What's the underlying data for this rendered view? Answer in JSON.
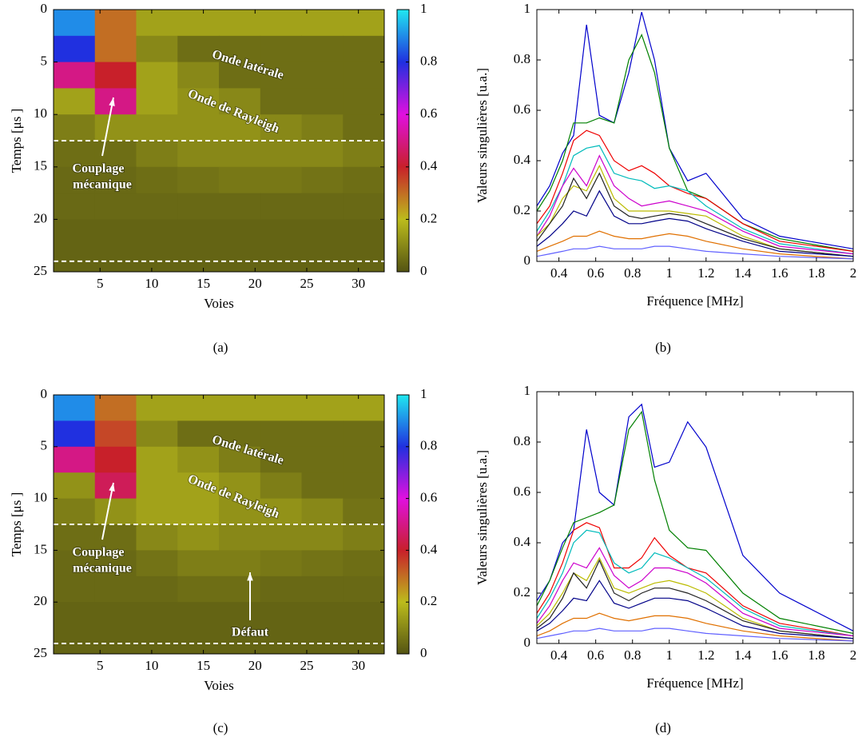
{
  "chart_data": [
    {
      "type": "heatmap",
      "xlabel": "Voies",
      "ylabel": "Temps [μs ]",
      "caption": "(a)",
      "xlim": [
        0.5,
        32.5
      ],
      "xticks": [
        5,
        10,
        15,
        20,
        25,
        30
      ],
      "ylim": [
        25,
        0
      ],
      "yticks": [
        0,
        5,
        10,
        15,
        20,
        25
      ],
      "xbins": [
        0.5,
        4.5,
        8.5,
        12.5,
        16.5,
        20.5,
        24.5,
        28.5,
        32.5
      ],
      "ybins": [
        0,
        2.5,
        5,
        7.5,
        10,
        12.5,
        15,
        17.5,
        20,
        22.5,
        25
      ],
      "z": [
        [
          0.9,
          0.3,
          0.15,
          0.15,
          0.15,
          0.15,
          0.15,
          0.15
        ],
        [
          0.8,
          0.3,
          0.1,
          0.05,
          0.05,
          0.05,
          0.05,
          0.05
        ],
        [
          0.5,
          0.4,
          0.15,
          0.1,
          0.05,
          0.05,
          0.05,
          0.05
        ],
        [
          0.15,
          0.5,
          0.15,
          0.12,
          0.1,
          0.05,
          0.05,
          0.05
        ],
        [
          0.08,
          0.12,
          0.12,
          0.12,
          0.12,
          0.1,
          0.08,
          0.05
        ],
        [
          0.05,
          0.05,
          0.08,
          0.1,
          0.1,
          0.1,
          0.1,
          0.08
        ],
        [
          0.04,
          0.04,
          0.05,
          0.06,
          0.07,
          0.07,
          0.06,
          0.05
        ],
        [
          0.04,
          0.04,
          0.04,
          0.04,
          0.04,
          0.04,
          0.04,
          0.04
        ],
        [
          0.03,
          0.03,
          0.03,
          0.03,
          0.03,
          0.03,
          0.03,
          0.03
        ],
        [
          0.03,
          0.03,
          0.03,
          0.03,
          0.03,
          0.03,
          0.03,
          0.03
        ]
      ],
      "clim": [
        0,
        1
      ],
      "cticks": [
        0,
        0.2,
        0.4,
        0.6,
        0.8,
        1
      ],
      "colormap": [
        "#545413",
        "#bcbc1c",
        "#c8202a",
        "#e010e0",
        "#2030e0",
        "#20e8f0"
      ],
      "hlines": [
        12.5,
        24
      ],
      "annotations": [
        "Onde latérale",
        "Onde de Rayleigh",
        "Couplage",
        "mécanique"
      ]
    },
    {
      "type": "line",
      "xlabel": "Fréquence [MHz]",
      "ylabel": "Valeurs singulières [u.a.]",
      "caption": "(b)",
      "xlim": [
        0.28,
        2
      ],
      "xticks": [
        0.4,
        0.6,
        0.8,
        1,
        1.2,
        1.4,
        1.6,
        1.8,
        2
      ],
      "ylim": [
        0,
        1
      ],
      "yticks": [
        0,
        0.2,
        0.4,
        0.6,
        0.8,
        1
      ],
      "x": [
        0.28,
        0.35,
        0.42,
        0.48,
        0.55,
        0.62,
        0.7,
        0.78,
        0.85,
        0.92,
        1.0,
        1.1,
        1.2,
        1.4,
        1.6,
        2.0
      ],
      "series": [
        {
          "color": "#0000cc",
          "values": [
            0.22,
            0.3,
            0.43,
            0.5,
            0.94,
            0.58,
            0.55,
            0.75,
            0.99,
            0.8,
            0.45,
            0.32,
            0.35,
            0.17,
            0.1,
            0.05
          ]
        },
        {
          "color": "#008000",
          "values": [
            0.2,
            0.28,
            0.4,
            0.55,
            0.55,
            0.57,
            0.55,
            0.8,
            0.9,
            0.75,
            0.45,
            0.28,
            0.25,
            0.15,
            0.09,
            0.04
          ]
        },
        {
          "color": "#ee0000",
          "values": [
            0.15,
            0.22,
            0.35,
            0.48,
            0.52,
            0.5,
            0.4,
            0.36,
            0.38,
            0.35,
            0.3,
            0.27,
            0.25,
            0.15,
            0.08,
            0.04
          ]
        },
        {
          "color": "#00bbbb",
          "values": [
            0.12,
            0.2,
            0.3,
            0.42,
            0.45,
            0.46,
            0.35,
            0.33,
            0.32,
            0.29,
            0.3,
            0.28,
            0.22,
            0.13,
            0.07,
            0.03
          ]
        },
        {
          "color": "#cc00cc",
          "values": [
            0.1,
            0.18,
            0.3,
            0.37,
            0.3,
            0.42,
            0.3,
            0.25,
            0.22,
            0.23,
            0.24,
            0.22,
            0.2,
            0.12,
            0.06,
            0.03
          ]
        },
        {
          "color": "#bbbb00",
          "values": [
            0.1,
            0.15,
            0.25,
            0.3,
            0.28,
            0.38,
            0.25,
            0.2,
            0.2,
            0.2,
            0.2,
            0.19,
            0.18,
            0.1,
            0.05,
            0.02
          ]
        },
        {
          "color": "#222222",
          "values": [
            0.08,
            0.15,
            0.22,
            0.33,
            0.25,
            0.35,
            0.22,
            0.18,
            0.17,
            0.18,
            0.19,
            0.18,
            0.15,
            0.09,
            0.05,
            0.02
          ]
        },
        {
          "color": "#000088",
          "values": [
            0.06,
            0.1,
            0.15,
            0.2,
            0.18,
            0.28,
            0.18,
            0.15,
            0.15,
            0.16,
            0.17,
            0.16,
            0.13,
            0.08,
            0.04,
            0.02
          ]
        },
        {
          "color": "#e07000",
          "values": [
            0.04,
            0.06,
            0.08,
            0.1,
            0.1,
            0.12,
            0.1,
            0.09,
            0.09,
            0.1,
            0.11,
            0.1,
            0.08,
            0.05,
            0.03,
            0.01
          ]
        },
        {
          "color": "#6060ff",
          "values": [
            0.02,
            0.03,
            0.04,
            0.05,
            0.05,
            0.06,
            0.05,
            0.05,
            0.05,
            0.06,
            0.06,
            0.05,
            0.04,
            0.03,
            0.02,
            0.01
          ]
        }
      ]
    },
    {
      "type": "heatmap",
      "xlabel": "Voies",
      "ylabel": "Temps [μs ]",
      "caption": "(c)",
      "xlim": [
        0.5,
        32.5
      ],
      "xticks": [
        5,
        10,
        15,
        20,
        25,
        30
      ],
      "ylim": [
        25,
        0
      ],
      "yticks": [
        0,
        5,
        10,
        15,
        20,
        25
      ],
      "xbins": [
        0.5,
        4.5,
        8.5,
        12.5,
        16.5,
        20.5,
        24.5,
        28.5,
        32.5
      ],
      "ybins": [
        0,
        2.5,
        5,
        7.5,
        10,
        12.5,
        15,
        17.5,
        20,
        22.5,
        25
      ],
      "z": [
        [
          0.9,
          0.3,
          0.15,
          0.15,
          0.15,
          0.15,
          0.15,
          0.15
        ],
        [
          0.8,
          0.35,
          0.1,
          0.05,
          0.05,
          0.05,
          0.05,
          0.05
        ],
        [
          0.5,
          0.4,
          0.15,
          0.12,
          0.08,
          0.05,
          0.05,
          0.05
        ],
        [
          0.12,
          0.45,
          0.15,
          0.15,
          0.12,
          0.08,
          0.05,
          0.05
        ],
        [
          0.08,
          0.12,
          0.15,
          0.15,
          0.12,
          0.12,
          0.1,
          0.06
        ],
        [
          0.05,
          0.05,
          0.1,
          0.12,
          0.1,
          0.1,
          0.1,
          0.08
        ],
        [
          0.04,
          0.04,
          0.06,
          0.08,
          0.08,
          0.07,
          0.06,
          0.05
        ],
        [
          0.04,
          0.04,
          0.04,
          0.05,
          0.05,
          0.04,
          0.04,
          0.04
        ],
        [
          0.03,
          0.03,
          0.03,
          0.03,
          0.03,
          0.03,
          0.03,
          0.03
        ],
        [
          0.03,
          0.03,
          0.03,
          0.03,
          0.03,
          0.03,
          0.03,
          0.03
        ]
      ],
      "clim": [
        0,
        1
      ],
      "cticks": [
        0,
        0.2,
        0.4,
        0.6,
        0.8,
        1
      ],
      "colormap": [
        "#545413",
        "#bcbc1c",
        "#c8202a",
        "#e010e0",
        "#2030e0",
        "#20e8f0"
      ],
      "hlines": [
        12.5,
        24
      ],
      "annotations": [
        "Onde latérale",
        "Onde de Rayleigh",
        "Couplage",
        "mécanique",
        "Défaut"
      ]
    },
    {
      "type": "line",
      "xlabel": "Fréquence [MHz]",
      "ylabel": "Valeurs singulières [u.a.]",
      "caption": "(d)",
      "xlim": [
        0.28,
        2
      ],
      "xticks": [
        0.4,
        0.6,
        0.8,
        1,
        1.2,
        1.4,
        1.6,
        1.8,
        2
      ],
      "ylim": [
        0,
        1
      ],
      "yticks": [
        0,
        0.2,
        0.4,
        0.6,
        0.8,
        1
      ],
      "x": [
        0.28,
        0.35,
        0.42,
        0.48,
        0.55,
        0.62,
        0.7,
        0.78,
        0.85,
        0.92,
        1.0,
        1.1,
        1.2,
        1.4,
        1.6,
        2.0
      ],
      "series": [
        {
          "color": "#0000cc",
          "values": [
            0.17,
            0.25,
            0.4,
            0.45,
            0.85,
            0.6,
            0.55,
            0.9,
            0.95,
            0.7,
            0.72,
            0.88,
            0.78,
            0.35,
            0.2,
            0.05
          ]
        },
        {
          "color": "#008000",
          "values": [
            0.15,
            0.25,
            0.38,
            0.48,
            0.5,
            0.52,
            0.55,
            0.85,
            0.92,
            0.65,
            0.45,
            0.38,
            0.37,
            0.2,
            0.1,
            0.04
          ]
        },
        {
          "color": "#ee0000",
          "values": [
            0.12,
            0.2,
            0.32,
            0.45,
            0.48,
            0.46,
            0.3,
            0.3,
            0.34,
            0.42,
            0.35,
            0.3,
            0.28,
            0.15,
            0.08,
            0.03
          ]
        },
        {
          "color": "#00bbbb",
          "values": [
            0.1,
            0.18,
            0.28,
            0.4,
            0.45,
            0.44,
            0.32,
            0.28,
            0.3,
            0.36,
            0.34,
            0.3,
            0.26,
            0.14,
            0.07,
            0.03
          ]
        },
        {
          "color": "#cc00cc",
          "values": [
            0.08,
            0.15,
            0.25,
            0.32,
            0.3,
            0.38,
            0.27,
            0.22,
            0.25,
            0.3,
            0.3,
            0.28,
            0.24,
            0.12,
            0.06,
            0.03
          ]
        },
        {
          "color": "#bbbb00",
          "values": [
            0.07,
            0.12,
            0.2,
            0.28,
            0.25,
            0.34,
            0.22,
            0.2,
            0.22,
            0.24,
            0.25,
            0.23,
            0.2,
            0.1,
            0.05,
            0.02
          ]
        },
        {
          "color": "#222222",
          "values": [
            0.06,
            0.1,
            0.18,
            0.28,
            0.22,
            0.33,
            0.2,
            0.17,
            0.2,
            0.22,
            0.22,
            0.2,
            0.17,
            0.09,
            0.05,
            0.02
          ]
        },
        {
          "color": "#000088",
          "values": [
            0.05,
            0.08,
            0.13,
            0.18,
            0.17,
            0.25,
            0.16,
            0.14,
            0.16,
            0.18,
            0.18,
            0.17,
            0.14,
            0.07,
            0.04,
            0.02
          ]
        },
        {
          "color": "#e07000",
          "values": [
            0.03,
            0.05,
            0.08,
            0.1,
            0.1,
            0.12,
            0.1,
            0.09,
            0.1,
            0.11,
            0.11,
            0.1,
            0.08,
            0.05,
            0.03,
            0.01
          ]
        },
        {
          "color": "#6060ff",
          "values": [
            0.02,
            0.03,
            0.04,
            0.05,
            0.05,
            0.06,
            0.05,
            0.05,
            0.05,
            0.06,
            0.06,
            0.05,
            0.04,
            0.03,
            0.02,
            0.01
          ]
        }
      ]
    }
  ]
}
